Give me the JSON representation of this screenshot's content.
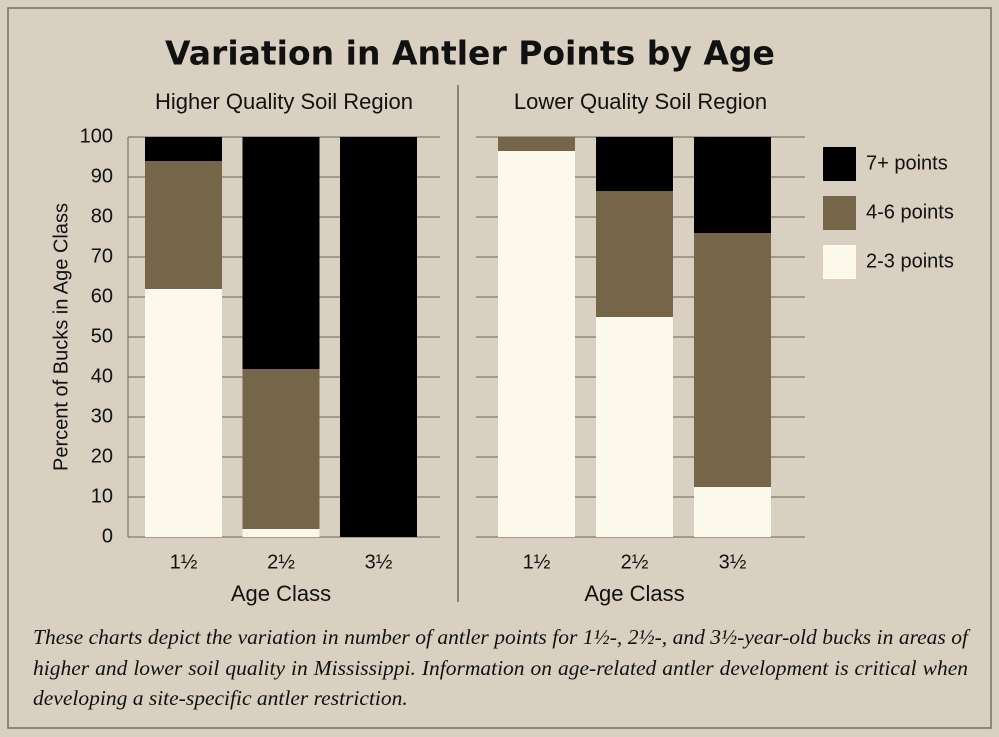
{
  "chart_data": {
    "type": "bar",
    "stacked": true,
    "title": "Variation in Antler Points by Age",
    "ylabel": "Percent of Bucks in Age Class",
    "ylim": [
      0,
      100
    ],
    "yticks": [
      0,
      10,
      20,
      30,
      40,
      50,
      60,
      70,
      80,
      90,
      100
    ],
    "grid": true,
    "legend": "right",
    "series": [
      {
        "name": "2-3 points",
        "color": "#fdf8ec"
      },
      {
        "name": "4-6 points",
        "color": "#756649"
      },
      {
        "name": "7+ points",
        "color": "#000000"
      }
    ],
    "panels": [
      {
        "subtitle": "Higher Quality Soil Region",
        "xlabel": "Age Class",
        "categories": [
          "1½",
          "2½",
          "3½"
        ],
        "series": [
          {
            "values": [
              62,
              2,
              0
            ]
          },
          {
            "values": [
              32,
              40,
              0
            ]
          },
          {
            "values": [
              6,
              58,
              100
            ]
          }
        ]
      },
      {
        "subtitle": "Lower Quality Soil Region",
        "xlabel": "Age Class",
        "categories": [
          "1½",
          "2½",
          "3½"
        ],
        "series": [
          {
            "values": [
              96.5,
              55,
              12.5
            ]
          },
          {
            "values": [
              3.5,
              31.5,
              63.5
            ]
          },
          {
            "values": [
              0,
              13.5,
              24
            ]
          }
        ]
      }
    ]
  },
  "caption": "These charts depict the variation in number of antler points for 1½-, 2½-, and 3½-year-old bucks in areas of higher and lower soil quality in Mississippi. Information on age-related antler development is critical when developing a site-specific antler restriction."
}
